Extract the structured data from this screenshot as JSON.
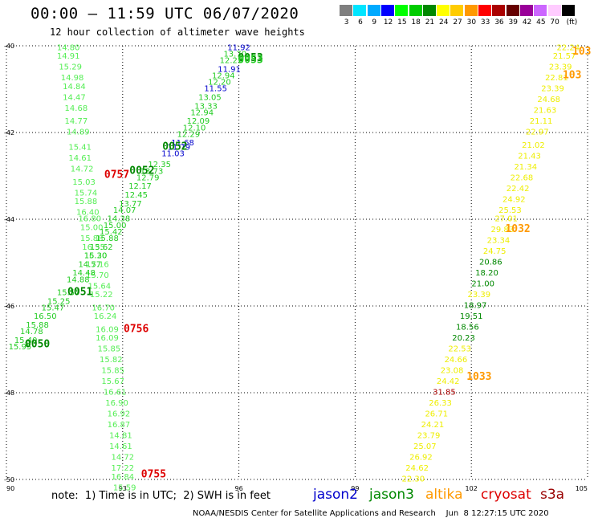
{
  "header": {
    "title": "00:00 — 11:59 UTC 06/07/2020",
    "subtitle": "12 hour collection of altimeter wave heights"
  },
  "legend": {
    "colors": [
      "#7f7f7f",
      "#00e5ff",
      "#00aaff",
      "#0000ff",
      "#00ff00",
      "#00cc00",
      "#008800",
      "#ffff00",
      "#ffcc00",
      "#ff9900",
      "#ff0000",
      "#aa0000",
      "#660000",
      "#990099",
      "#cc66ff",
      "#ffccff",
      "#000000"
    ],
    "labels": [
      "3",
      "6",
      "9",
      "12",
      "15",
      "18",
      "21",
      "24",
      "27",
      "30",
      "33",
      "36",
      "39",
      "42",
      "45",
      "70",
      "(ft)"
    ]
  },
  "footer": {
    "note": "note:  1) Time is in UTC;  2) SWH is in feet",
    "missions": [
      {
        "name": "jason2",
        "color": "#0000cc"
      },
      {
        "name": "jason3",
        "color": "#008800"
      },
      {
        "name": "altika",
        "color": "#ff9900"
      },
      {
        "name": "cryosat",
        "color": "#dd0000"
      },
      {
        "name": "s3a",
        "color": "#990000"
      }
    ],
    "credit": "NOAA/NESDIS Center for Satellite Applications and Research    Jun  8 12:27:15 UTC 2020"
  },
  "chart_data": {
    "type": "scatter",
    "title": "12 hour collection of altimeter wave heights",
    "xlim": [
      90,
      105
    ],
    "ylim": [
      -50,
      -40
    ],
    "x_ticks": [
      "90",
      "93",
      "96",
      "99",
      "102",
      "105"
    ],
    "y_ticks": [
      "-40",
      "-42",
      "-44",
      "-46",
      "-48",
      "-50"
    ],
    "grid": true,
    "colors": {
      "lightgreen": "#55ee55",
      "green": "#22cc22",
      "darkgreen": "#008800",
      "blue": "#0000cc",
      "yellow": "#eeee00",
      "orange": "#ff9900",
      "red": "#dd0000",
      "darkred": "#aa0000"
    },
    "time_labels": [
      {
        "text": "0053",
        "x": 96.3,
        "y": -40.35,
        "color": "darkgreen"
      },
      {
        "text": "0053",
        "x": 96.3,
        "y": -40.4,
        "color": "green"
      },
      {
        "text": "0052",
        "x": 94.35,
        "y": -42.4,
        "color": "darkgreen"
      },
      {
        "text": "0052",
        "x": 93.5,
        "y": -42.95,
        "color": "darkgreen"
      },
      {
        "text": "0757",
        "x": 92.85,
        "y": -43.05,
        "color": "red"
      },
      {
        "text": "0051",
        "x": 91.9,
        "y": -45.75,
        "color": "darkgreen"
      },
      {
        "text": "0050",
        "x": 90.8,
        "y": -46.95,
        "color": "darkgreen"
      },
      {
        "text": "0756",
        "x": 93.35,
        "y": -46.6,
        "color": "red"
      },
      {
        "text": "0755",
        "x": 93.8,
        "y": -49.95,
        "color": "red"
      },
      {
        "text": "103",
        "x": 104.85,
        "y": -40.2,
        "color": "orange"
      },
      {
        "text": "103",
        "x": 104.6,
        "y": -40.75,
        "color": "orange"
      },
      {
        "text": "1032",
        "x": 103.2,
        "y": -44.3,
        "color": "orange"
      },
      {
        "text": "1033",
        "x": 102.2,
        "y": -47.7,
        "color": "orange"
      }
    ],
    "series": [
      {
        "name": "track-a",
        "color": "lightgreen",
        "points": [
          {
            "x": 91.6,
            "y": -40.1,
            "v": "14.80"
          },
          {
            "x": 91.6,
            "y": -40.3,
            "v": "14.91"
          },
          {
            "x": 91.65,
            "y": -40.55,
            "v": "15.29"
          },
          {
            "x": 91.7,
            "y": -40.8,
            "v": "14.98"
          },
          {
            "x": 91.75,
            "y": -41.0,
            "v": "14.84"
          },
          {
            "x": 91.75,
            "y": -41.25,
            "v": "14.47"
          },
          {
            "x": 91.8,
            "y": -41.5,
            "v": "14.68"
          },
          {
            "x": 91.8,
            "y": -41.8,
            "v": "14.77"
          },
          {
            "x": 91.85,
            "y": -42.05,
            "v": "14.89"
          },
          {
            "x": 91.9,
            "y": -42.4,
            "v": "15.41"
          },
          {
            "x": 91.9,
            "y": -42.65,
            "v": "14.61"
          },
          {
            "x": 91.95,
            "y": -42.9,
            "v": "14.72"
          },
          {
            "x": 92.0,
            "y": -43.2,
            "v": "15.03"
          },
          {
            "x": 92.05,
            "y": -43.45,
            "v": "15.74"
          },
          {
            "x": 92.05,
            "y": -43.65,
            "v": "15.88"
          },
          {
            "x": 92.1,
            "y": -43.9,
            "v": "16.40"
          },
          {
            "x": 92.15,
            "y": -44.05,
            "v": "16.80"
          },
          {
            "x": 92.2,
            "y": -44.25,
            "v": "15.00"
          },
          {
            "x": 92.2,
            "y": -44.5,
            "v": "15.88"
          },
          {
            "x": 92.25,
            "y": -44.7,
            "v": "16.35"
          },
          {
            "x": 92.3,
            "y": -44.9,
            "v": "16.20"
          },
          {
            "x": 92.35,
            "y": -45.1,
            "v": "17.16"
          },
          {
            "x": 92.35,
            "y": -45.35,
            "v": "15.70"
          },
          {
            "x": 92.4,
            "y": -45.6,
            "v": "15.64"
          },
          {
            "x": 92.45,
            "y": -45.8,
            "v": "15.22"
          },
          {
            "x": 92.5,
            "y": -46.1,
            "v": "16.70"
          },
          {
            "x": 92.55,
            "y": -46.3,
            "v": "16.24"
          },
          {
            "x": 92.6,
            "y": -46.6,
            "v": "16.09"
          },
          {
            "x": 92.6,
            "y": -46.8,
            "v": "16.09"
          },
          {
            "x": 92.65,
            "y": -47.05,
            "v": "15.85"
          },
          {
            "x": 92.7,
            "y": -47.3,
            "v": "15.82"
          },
          {
            "x": 92.75,
            "y": -47.55,
            "v": "15.85"
          },
          {
            "x": 92.75,
            "y": -47.8,
            "v": "15.67"
          },
          {
            "x": 92.8,
            "y": -48.05,
            "v": "16.61"
          },
          {
            "x": 92.85,
            "y": -48.3,
            "v": "16.90"
          },
          {
            "x": 92.9,
            "y": -48.55,
            "v": "16.92"
          },
          {
            "x": 92.9,
            "y": -48.8,
            "v": "16.87"
          },
          {
            "x": 92.95,
            "y": -49.05,
            "v": "14.81"
          },
          {
            "x": 92.95,
            "y": -49.3,
            "v": "14.61"
          },
          {
            "x": 93.0,
            "y": -49.55,
            "v": "14.72"
          },
          {
            "x": 93.0,
            "y": -49.8,
            "v": "17.22"
          },
          {
            "x": 93.0,
            "y": -50.0,
            "v": "16.84"
          },
          {
            "x": 93.05,
            "y": -50.25,
            "v": "15.59"
          }
        ]
      },
      {
        "name": "track-b",
        "color": "green",
        "points": [
          {
            "x": 96.0,
            "y": -40.1,
            "v": "11.92"
          },
          {
            "x": 95.9,
            "y": -40.25,
            "v": "13.70"
          },
          {
            "x": 95.8,
            "y": -40.4,
            "v": "12.23"
          },
          {
            "x": 95.75,
            "y": -40.6,
            "v": "11.91"
          },
          {
            "x": 95.6,
            "y": -40.75,
            "v": "12.94"
          },
          {
            "x": 95.5,
            "y": -40.9,
            "v": "12.20"
          },
          {
            "x": 95.4,
            "y": -41.05,
            "v": "11.55"
          },
          {
            "x": 95.25,
            "y": -41.25,
            "v": "13.05"
          },
          {
            "x": 95.15,
            "y": -41.45,
            "v": "13.33"
          },
          {
            "x": 95.05,
            "y": -41.6,
            "v": "12.94"
          },
          {
            "x": 94.95,
            "y": -41.8,
            "v": "12.09"
          },
          {
            "x": 94.85,
            "y": -41.95,
            "v": "12.10"
          },
          {
            "x": 94.7,
            "y": -42.1,
            "v": "12.29"
          },
          {
            "x": 94.55,
            "y": -42.3,
            "v": "11.68"
          },
          {
            "x": 94.45,
            "y": -42.4,
            "v": "11.79"
          },
          {
            "x": 94.3,
            "y": -42.55,
            "v": "11.03"
          },
          {
            "x": 93.95,
            "y": -42.8,
            "v": "12.35"
          },
          {
            "x": 93.75,
            "y": -42.95,
            "v": "13.73"
          },
          {
            "x": 93.65,
            "y": -43.1,
            "v": "12.79"
          },
          {
            "x": 93.45,
            "y": -43.3,
            "v": "12.17"
          },
          {
            "x": 93.35,
            "y": -43.5,
            "v": "12.45"
          },
          {
            "x": 93.2,
            "y": -43.7,
            "v": "13.77"
          },
          {
            "x": 93.05,
            "y": -43.85,
            "v": "14.07"
          },
          {
            "x": 92.9,
            "y": -44.05,
            "v": "14.38"
          },
          {
            "x": 92.8,
            "y": -44.2,
            "v": "15.00"
          },
          {
            "x": 92.7,
            "y": -44.35,
            "v": "15.42"
          },
          {
            "x": 92.6,
            "y": -44.5,
            "v": "15.88"
          },
          {
            "x": 92.45,
            "y": -44.7,
            "v": "15.62"
          },
          {
            "x": 92.3,
            "y": -44.9,
            "v": "15.30"
          },
          {
            "x": 92.15,
            "y": -45.1,
            "v": "14.57"
          },
          {
            "x": 92.0,
            "y": -45.3,
            "v": "14.48"
          },
          {
            "x": 91.85,
            "y": -45.45,
            "v": "14.88"
          },
          {
            "x": 91.6,
            "y": -45.75,
            "v": "15.57"
          },
          {
            "x": 91.35,
            "y": -45.95,
            "v": "15.25"
          },
          {
            "x": 91.2,
            "y": -46.1,
            "v": "15.47"
          },
          {
            "x": 91.0,
            "y": -46.3,
            "v": "16.50"
          },
          {
            "x": 90.8,
            "y": -46.5,
            "v": "15.88"
          },
          {
            "x": 90.65,
            "y": -46.65,
            "v": "14.78"
          },
          {
            "x": 90.5,
            "y": -46.85,
            "v": "15.40"
          },
          {
            "x": 90.35,
            "y": -47.0,
            "v": "15.95"
          }
        ]
      },
      {
        "name": "track-c",
        "color": "yellow",
        "points": [
          {
            "x": 104.5,
            "y": -40.1,
            "v": "22.24"
          },
          {
            "x": 104.4,
            "y": -40.3,
            "v": "21.57"
          },
          {
            "x": 104.3,
            "y": -40.55,
            "v": "23.39"
          },
          {
            "x": 104.2,
            "y": -40.8,
            "v": "22.81"
          },
          {
            "x": 104.1,
            "y": -41.05,
            "v": "23.39"
          },
          {
            "x": 104.0,
            "y": -41.3,
            "v": "24.68"
          },
          {
            "x": 103.9,
            "y": -41.55,
            "v": "21.63"
          },
          {
            "x": 103.8,
            "y": -41.8,
            "v": "21.11"
          },
          {
            "x": 103.7,
            "y": -42.05,
            "v": "22.97"
          },
          {
            "x": 103.6,
            "y": -42.35,
            "v": "21.02"
          },
          {
            "x": 103.5,
            "y": -42.6,
            "v": "21.43"
          },
          {
            "x": 103.4,
            "y": -42.85,
            "v": "21.34"
          },
          {
            "x": 103.3,
            "y": -43.1,
            "v": "22.68"
          },
          {
            "x": 103.2,
            "y": -43.35,
            "v": "22.42"
          },
          {
            "x": 103.1,
            "y": -43.6,
            "v": "24.92"
          },
          {
            "x": 103.0,
            "y": -43.85,
            "v": "25.53"
          },
          {
            "x": 102.9,
            "y": -44.05,
            "v": "27.01"
          },
          {
            "x": 102.8,
            "y": -44.3,
            "v": "29.83"
          },
          {
            "x": 102.7,
            "y": -44.55,
            "v": "23.34"
          },
          {
            "x": 102.6,
            "y": -44.8,
            "v": "24.75"
          },
          {
            "x": 102.5,
            "y": -45.05,
            "v": "20.86"
          },
          {
            "x": 102.4,
            "y": -45.3,
            "v": "18.20"
          },
          {
            "x": 102.3,
            "y": -45.55,
            "v": "21.00"
          },
          {
            "x": 102.2,
            "y": -45.8,
            "v": "23.39"
          },
          {
            "x": 102.1,
            "y": -46.05,
            "v": "18.97"
          },
          {
            "x": 102.0,
            "y": -46.3,
            "v": "19.51"
          },
          {
            "x": 101.9,
            "y": -46.55,
            "v": "18.56"
          },
          {
            "x": 101.8,
            "y": -46.8,
            "v": "20.23"
          },
          {
            "x": 101.7,
            "y": -47.05,
            "v": "22.53"
          },
          {
            "x": 101.6,
            "y": -47.3,
            "v": "24.66"
          },
          {
            "x": 101.5,
            "y": -47.55,
            "v": "23.08"
          },
          {
            "x": 101.4,
            "y": -47.8,
            "v": "24.42"
          },
          {
            "x": 101.3,
            "y": -48.05,
            "v": "31.85"
          },
          {
            "x": 101.2,
            "y": -48.3,
            "v": "26.33"
          },
          {
            "x": 101.1,
            "y": -48.55,
            "v": "26.71"
          },
          {
            "x": 101.0,
            "y": -48.8,
            "v": "24.21"
          },
          {
            "x": 100.9,
            "y": -49.05,
            "v": "23.79"
          },
          {
            "x": 100.8,
            "y": -49.3,
            "v": "25.07"
          },
          {
            "x": 100.7,
            "y": -49.55,
            "v": "26.92"
          },
          {
            "x": 100.6,
            "y": -49.8,
            "v": "24.62"
          },
          {
            "x": 100.5,
            "y": -50.05,
            "v": "22.30"
          }
        ]
      }
    ],
    "point_colors": {
      "track-b": {
        "11.92": "blue",
        "11.91": "blue",
        "11.55": "blue",
        "11.68": "blue",
        "11.79": "blue",
        "11.03": "blue"
      },
      "track-c": {
        "20.86": "darkgreen",
        "18.20": "darkgreen",
        "21.00": "darkgreen",
        "18.97": "darkgreen",
        "19.51": "darkgreen",
        "18.56": "darkgreen",
        "20.23": "darkgreen",
        "31.85": "darkred"
      }
    }
  }
}
